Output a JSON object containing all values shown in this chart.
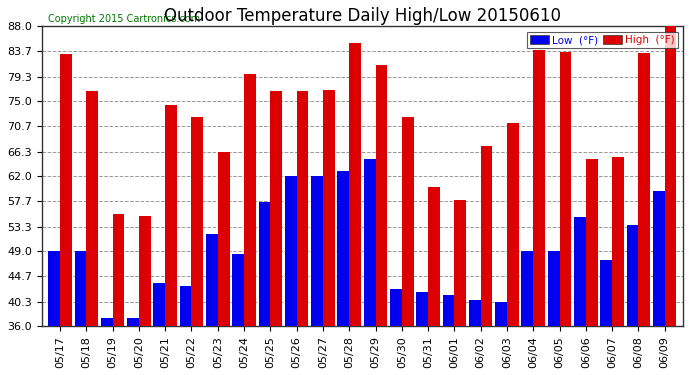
{
  "title": "Outdoor Temperature Daily High/Low 20150610",
  "copyright": "Copyright 2015 Cartronics.com",
  "legend_low": "Low  (°F)",
  "legend_high": "High  (°F)",
  "low_color": "#0000ee",
  "high_color": "#dd0000",
  "ylim": [
    36.0,
    88.0
  ],
  "yticks": [
    36.0,
    40.3,
    44.7,
    49.0,
    53.3,
    57.7,
    62.0,
    66.3,
    70.7,
    75.0,
    79.3,
    83.7,
    88.0
  ],
  "background_color": "#ffffff",
  "plot_bg_color": "#ffffff",
  "grid_color": "#999999",
  "dates": [
    "05/17",
    "05/18",
    "05/19",
    "05/20",
    "05/21",
    "05/22",
    "05/23",
    "05/24",
    "05/25",
    "05/26",
    "05/27",
    "05/28",
    "05/29",
    "05/30",
    "05/31",
    "06/01",
    "06/02",
    "06/03",
    "06/04",
    "06/05",
    "06/06",
    "06/07",
    "06/08",
    "06/09"
  ],
  "highs": [
    83.3,
    76.8,
    55.4,
    55.2,
    74.3,
    72.3,
    66.2,
    79.8,
    76.9,
    76.9,
    77.0,
    85.1,
    81.3,
    72.3,
    60.1,
    57.9,
    67.3,
    71.3,
    83.9,
    83.6,
    65.1,
    65.3,
    83.4,
    88.0
  ],
  "lows": [
    49.0,
    49.0,
    37.5,
    37.5,
    43.5,
    43.0,
    52.0,
    48.5,
    57.5,
    62.0,
    62.0,
    63.0,
    65.0,
    42.5,
    42.0,
    41.5,
    40.5,
    40.3,
    49.0,
    49.0,
    55.0,
    47.5,
    53.5,
    59.5
  ],
  "title_fontsize": 12,
  "copyright_fontsize": 7,
  "tick_fontsize": 8
}
